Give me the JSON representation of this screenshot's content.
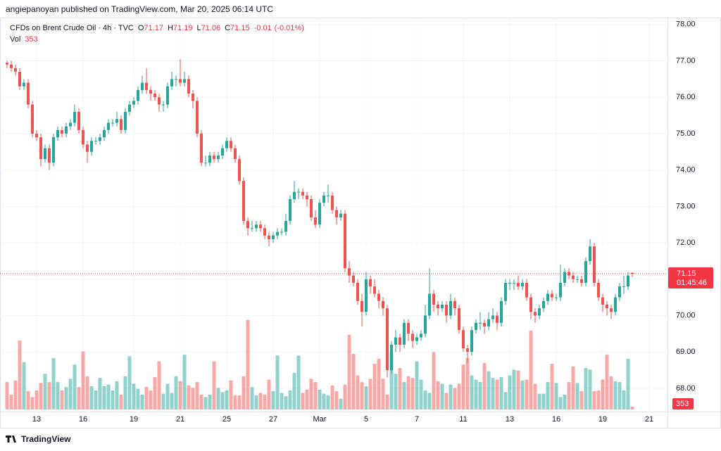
{
  "header": "angiepanoyan published on TradingView.com, Mar 20, 2025 06:14 UTC",
  "footer": "TradingView",
  "chart_data": {
    "type": "candlestick",
    "symbol": "CFDs on Brent Crude Oil · 4h · TVC",
    "legend_labels": {
      "open": "O",
      "high": "H",
      "low": "L",
      "close": "C",
      "volume": "Vol"
    },
    "change": "-0.01",
    "change_pct": "(-0.01%)",
    "countdown": "01:45:46",
    "up_color": "#26a69a",
    "down_color": "#ef5350",
    "grid": true,
    "ylim": [
      67.36,
      78.19
    ],
    "yticks": [
      {
        "value": 68,
        "label": "68.00"
      },
      {
        "value": 69,
        "label": "69.00"
      },
      {
        "value": 70,
        "label": "70.00"
      },
      {
        "value": 71,
        "label": "71.00"
      },
      {
        "value": 72,
        "label": "72.00"
      },
      {
        "value": 73,
        "label": "73.00"
      },
      {
        "value": 74,
        "label": "74.00"
      },
      {
        "value": 75,
        "label": "75.00"
      },
      {
        "value": 76,
        "label": "76.00"
      },
      {
        "value": 77,
        "label": "77.00"
      },
      {
        "value": 78,
        "label": "78.00"
      }
    ],
    "categories": [
      null,
      null,
      null,
      null,
      null,
      null,
      null,
      "13",
      null,
      null,
      null,
      null,
      null,
      null,
      null,
      null,
      null,
      null,
      "16",
      null,
      null,
      null,
      null,
      null,
      null,
      null,
      null,
      null,
      null,
      null,
      "19",
      null,
      null,
      null,
      null,
      null,
      null,
      null,
      null,
      null,
      null,
      "21",
      null,
      null,
      null,
      null,
      null,
      null,
      null,
      null,
      null,
      null,
      "25",
      null,
      null,
      null,
      null,
      null,
      null,
      null,
      null,
      null,
      null,
      "27",
      null,
      null,
      null,
      null,
      null,
      null,
      null,
      null,
      null,
      null,
      "Mar",
      null,
      null,
      null,
      null,
      null,
      null,
      null,
      null,
      null,
      null,
      "5",
      null,
      null,
      null,
      null,
      null,
      null,
      null,
      null,
      null,
      null,
      null,
      "7",
      null,
      null,
      null,
      null,
      null,
      null,
      null,
      null,
      null,
      null,
      "11",
      null,
      null,
      null,
      null,
      null,
      null,
      null,
      null,
      null,
      null,
      "13",
      null,
      null,
      null,
      null,
      null,
      null,
      null,
      null,
      null,
      null,
      "16",
      null,
      null,
      null,
      null,
      null,
      null,
      null,
      null,
      null,
      null,
      "19",
      null,
      null,
      null,
      null,
      null,
      null,
      null,
      null,
      null,
      null,
      "21"
    ],
    "open": [
      76.95,
      76.9,
      76.8,
      76.7,
      76.3,
      76.4,
      75.8,
      75.0,
      74.9,
      74.3,
      74.6,
      74.2,
      74.9,
      75.1,
      75.0,
      75.2,
      75.3,
      75.6,
      75.1,
      74.7,
      74.5,
      74.8,
      74.8,
      74.9,
      75.1,
      75.3,
      75.3,
      75.4,
      75.1,
      75.6,
      75.8,
      75.9,
      76.2,
      76.4,
      76.2,
      76.1,
      76.0,
      75.8,
      75.8,
      76.3,
      76.5,
      76.5,
      76.4,
      76.5,
      76.1,
      75.9,
      75.0,
      74.2,
      74.2,
      74.4,
      74.3,
      74.4,
      74.6,
      74.8,
      74.6,
      74.3,
      73.7,
      72.6,
      72.4,
      72.4,
      72.5,
      72.4,
      72.2,
      72.1,
      72.2,
      72.3,
      72.3,
      72.6,
      73.2,
      73.4,
      73.4,
      73.3,
      73.2,
      72.7,
      72.5,
      73.1,
      73.3,
      73.3,
      72.9,
      72.7,
      72.8,
      71.3,
      71.1,
      70.9,
      70.4,
      70.1,
      71.0,
      70.8,
      70.6,
      70.4,
      70.2,
      68.5,
      69.2,
      69.4,
      69.2,
      69.8,
      69.5,
      69.3,
      69.4,
      69.5,
      70.0,
      70.6,
      70.3,
      70.2,
      70.3,
      70.0,
      70.4,
      70.2,
      69.6,
      69.1,
      69.0,
      69.6,
      69.8,
      69.8,
      69.7,
      69.9,
      70.0,
      69.8,
      70.4,
      70.9,
      70.9,
      70.9,
      70.8,
      70.9,
      70.5,
      70.1,
      70.0,
      70.2,
      70.4,
      70.6,
      70.5,
      70.5,
      70.9,
      71.2,
      71.1,
      71.0,
      71.0,
      70.9,
      71.5,
      71.9,
      70.9,
      70.5,
      70.3,
      70.2,
      70.1,
      70.5,
      70.8,
      70.8,
      71.17,
      null,
      null,
      null,
      null
    ],
    "high": [
      77.0,
      77.0,
      76.9,
      76.8,
      76.5,
      76.5,
      75.9,
      75.1,
      75.0,
      74.7,
      74.7,
      75.0,
      75.2,
      75.2,
      75.3,
      75.4,
      75.8,
      75.7,
      75.2,
      74.8,
      74.9,
      74.9,
      75.0,
      75.2,
      75.4,
      75.4,
      75.6,
      75.5,
      75.7,
      75.9,
      76.0,
      76.3,
      76.6,
      76.8,
      76.3,
      76.2,
      76.1,
      75.9,
      76.4,
      76.7,
      76.6,
      77.05,
      76.7,
      76.6,
      76.2,
      76.0,
      75.1,
      74.4,
      74.5,
      74.5,
      74.5,
      74.7,
      74.9,
      74.9,
      74.7,
      74.4,
      73.8,
      72.7,
      72.6,
      72.6,
      72.6,
      72.5,
      72.3,
      72.3,
      72.4,
      72.4,
      72.8,
      73.3,
      73.7,
      73.5,
      73.5,
      73.4,
      73.3,
      72.9,
      73.2,
      73.4,
      73.6,
      73.4,
      73.0,
      72.9,
      72.9,
      71.5,
      71.2,
      71.0,
      70.6,
      71.2,
      71.1,
      71.0,
      70.7,
      70.5,
      70.3,
      69.3,
      69.6,
      69.5,
      69.9,
      69.9,
      69.6,
      69.5,
      69.6,
      70.3,
      71.3,
      70.7,
      70.4,
      70.4,
      70.4,
      70.6,
      70.5,
      70.3,
      69.7,
      69.2,
      69.7,
      69.9,
      70.1,
      69.9,
      70.1,
      70.2,
      70.1,
      70.5,
      71.0,
      71.0,
      71.0,
      71.1,
      71.0,
      71.0,
      70.6,
      70.2,
      70.3,
      70.5,
      70.7,
      70.7,
      70.6,
      71.4,
      71.3,
      71.3,
      71.2,
      71.1,
      71.1,
      71.6,
      72.1,
      72.0,
      71.0,
      70.6,
      70.4,
      70.3,
      70.6,
      70.9,
      71.1,
      71.2,
      71.19,
      null,
      null,
      null,
      null
    ],
    "low": [
      76.8,
      76.7,
      76.6,
      76.2,
      76.2,
      75.7,
      74.9,
      74.8,
      74.1,
      74.2,
      74.0,
      74.1,
      74.8,
      74.9,
      74.9,
      75.1,
      75.2,
      75.0,
      74.6,
      74.2,
      74.4,
      74.7,
      74.7,
      74.8,
      75.0,
      75.2,
      75.2,
      75.0,
      75.0,
      75.5,
      75.7,
      75.8,
      76.1,
      76.1,
      75.9,
      75.9,
      75.6,
      75.6,
      75.7,
      76.2,
      76.3,
      76.3,
      76.3,
      76.0,
      75.7,
      74.9,
      74.1,
      74.1,
      74.1,
      74.2,
      74.2,
      74.3,
      74.5,
      74.5,
      74.2,
      73.6,
      72.5,
      72.2,
      72.3,
      72.3,
      72.3,
      72.1,
      71.9,
      72.0,
      72.1,
      72.2,
      72.2,
      72.5,
      73.1,
      73.2,
      73.2,
      73.0,
      72.6,
      72.4,
      72.4,
      73.0,
      73.1,
      72.8,
      72.5,
      72.6,
      71.2,
      70.9,
      70.8,
      70.3,
      69.7,
      70.0,
      70.6,
      70.5,
      70.2,
      70.0,
      68.3,
      68.4,
      69.0,
      69.0,
      69.1,
      69.3,
      69.1,
      69.2,
      69.3,
      69.4,
      69.9,
      70.1,
      70.0,
      70.1,
      69.8,
      69.9,
      70.0,
      69.5,
      69.0,
      68.7,
      68.9,
      69.5,
      69.6,
      69.5,
      69.6,
      69.8,
      69.6,
      69.7,
      70.3,
      70.7,
      70.7,
      70.7,
      70.7,
      70.4,
      69.9,
      69.8,
      69.9,
      70.1,
      70.3,
      70.4,
      70.4,
      70.4,
      70.8,
      71.0,
      70.9,
      70.9,
      70.8,
      70.8,
      71.4,
      70.8,
      70.4,
      70.1,
      70.0,
      69.9,
      70.0,
      70.4,
      70.6,
      70.7,
      71.06,
      null,
      null,
      null,
      null
    ],
    "close": [
      76.9,
      76.8,
      76.7,
      76.3,
      76.4,
      75.8,
      75.0,
      74.9,
      74.3,
      74.6,
      74.2,
      74.9,
      75.1,
      75.0,
      75.2,
      75.3,
      75.6,
      75.1,
      74.7,
      74.5,
      74.8,
      74.8,
      74.9,
      75.1,
      75.3,
      75.3,
      75.4,
      75.1,
      75.6,
      75.8,
      75.9,
      76.2,
      76.4,
      76.2,
      76.1,
      76.0,
      75.8,
      75.8,
      76.3,
      76.5,
      76.5,
      76.4,
      76.5,
      76.1,
      75.9,
      75.0,
      74.2,
      74.2,
      74.4,
      74.3,
      74.4,
      74.6,
      74.8,
      74.6,
      74.3,
      73.7,
      72.6,
      72.4,
      72.4,
      72.5,
      72.4,
      72.2,
      72.1,
      72.2,
      72.3,
      72.3,
      72.6,
      73.2,
      73.4,
      73.4,
      73.3,
      73.2,
      72.7,
      72.5,
      73.1,
      73.3,
      73.3,
      72.9,
      72.7,
      72.8,
      71.3,
      71.1,
      70.9,
      70.4,
      70.1,
      71.0,
      70.8,
      70.6,
      70.4,
      70.2,
      68.5,
      69.2,
      69.4,
      69.2,
      69.8,
      69.5,
      69.3,
      69.4,
      69.5,
      70.0,
      70.6,
      70.3,
      70.2,
      70.3,
      70.0,
      70.4,
      70.2,
      69.6,
      69.1,
      69.0,
      69.6,
      69.8,
      69.8,
      69.7,
      69.9,
      70.0,
      69.8,
      70.4,
      70.9,
      70.9,
      70.9,
      70.8,
      70.9,
      70.5,
      70.1,
      70.0,
      70.2,
      70.4,
      70.6,
      70.5,
      70.5,
      70.9,
      71.2,
      71.1,
      71.0,
      71.0,
      70.9,
      71.5,
      71.9,
      70.9,
      70.5,
      70.3,
      70.2,
      70.1,
      70.5,
      70.8,
      70.8,
      71.1,
      71.15,
      null,
      null,
      null,
      null
    ],
    "volume": [
      3300,
      1800,
      3500,
      8300,
      5700,
      2200,
      1500,
      2300,
      3200,
      4300,
      3300,
      6200,
      3300,
      2300,
      2700,
      3700,
      5400,
      2700,
      7000,
      4000,
      2800,
      2300,
      3800,
      2800,
      3000,
      2300,
      3400,
      1800,
      4000,
      6400,
      3100,
      2500,
      1800,
      2700,
      2300,
      3900,
      5800,
      1900,
      3100,
      2000,
      4000,
      3400,
      6600,
      2900,
      2600,
      3300,
      1800,
      1500,
      1800,
      5800,
      2600,
      2100,
      2300,
      3500,
      1700,
      1700,
      4000,
      10800,
      2700,
      1700,
      2000,
      1800,
      3600,
      2200,
      6500,
      2000,
      1600,
      2300,
      4400,
      6500,
      2000,
      2400,
      3700,
      3300,
      2400,
      1900,
      1700,
      2900,
      2200,
      1300,
      3000,
      9000,
      6700,
      4100,
      3300,
      2800,
      3700,
      5500,
      6100,
      3700,
      1800,
      6900,
      4300,
      5000,
      3300,
      4000,
      3800,
      5800,
      3600,
      2300,
      2000,
      6900,
      3400,
      3100,
      2000,
      3000,
      2600,
      3100,
      5400,
      6200,
      4100,
      3600,
      3300,
      5600,
      4600,
      3800,
      3600,
      3900,
      2100,
      4100,
      4800,
      4700,
      3500,
      3600,
      9500,
      3100,
      1900,
      1900,
      3300,
      5500,
      3200,
      1500,
      1800,
      3300,
      5200,
      3200,
      2200,
      5000,
      4800,
      2200,
      2300,
      3600,
      6600,
      4000,
      3400,
      3300,
      2300,
      6100,
      353,
      null,
      null,
      null,
      null
    ]
  }
}
